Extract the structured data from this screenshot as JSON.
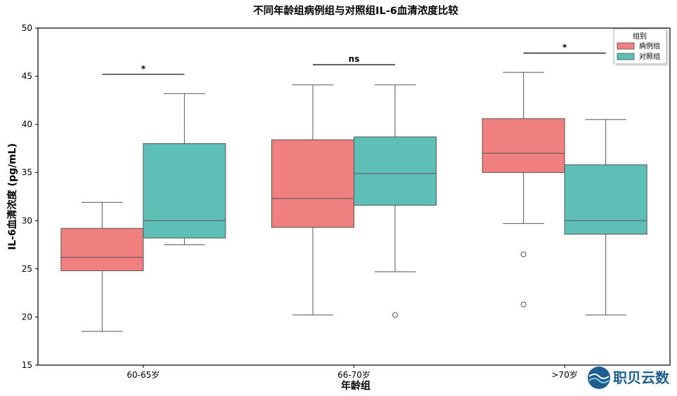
{
  "chart_data": {
    "type": "box",
    "title": "不同年龄组病例组与对照组IL-6血清浓度比较",
    "xlabel": "年龄组",
    "ylabel": "IL-6血清浓度 (pg/mL)",
    "ylim": [
      15,
      50
    ],
    "yticks": [
      15,
      20,
      25,
      30,
      35,
      40,
      45,
      50
    ],
    "categories": [
      "60-65岁",
      "66-70岁",
      ">70岁"
    ],
    "legend": {
      "title": "组别",
      "position": "top-right"
    },
    "series": [
      {
        "name": "病例组",
        "color": "#F08080",
        "boxes": [
          {
            "whisker_low": 18.5,
            "q1": 24.8,
            "median": 26.2,
            "q3": 29.2,
            "whisker_high": 31.9,
            "outliers": []
          },
          {
            "whisker_low": 20.2,
            "q1": 29.3,
            "median": 32.3,
            "q3": 38.4,
            "whisker_high": 44.1,
            "outliers": []
          },
          {
            "whisker_low": 29.7,
            "q1": 35.0,
            "median": 37.0,
            "q3": 40.6,
            "whisker_high": 45.4,
            "outliers": [
              26.5,
              21.3
            ]
          }
        ]
      },
      {
        "name": "对照组",
        "color": "#5EBFB7",
        "boxes": [
          {
            "whisker_low": 27.5,
            "q1": 28.2,
            "median": 30.0,
            "q3": 38.0,
            "whisker_high": 43.2,
            "outliers": []
          },
          {
            "whisker_low": 24.7,
            "q1": 31.6,
            "median": 34.9,
            "q3": 38.7,
            "whisker_high": 44.1,
            "outliers": [
              20.2
            ]
          },
          {
            "whisker_low": 20.2,
            "q1": 28.6,
            "median": 30.0,
            "q3": 35.8,
            "whisker_high": 40.5,
            "outliers": []
          }
        ]
      }
    ],
    "significance": [
      {
        "category": "60-65岁",
        "label": "*",
        "y": 45.2
      },
      {
        "category": "66-70岁",
        "label": "ns",
        "y": 46.2
      },
      {
        "category": ">70岁",
        "label": "*",
        "y": 47.4
      }
    ],
    "grid": false
  },
  "logo": {
    "text": "职贝云数"
  }
}
